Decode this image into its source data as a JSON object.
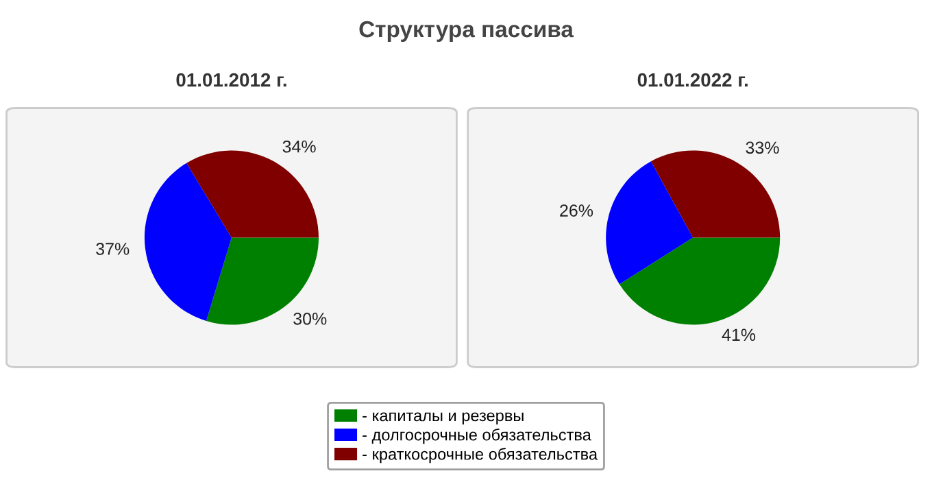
{
  "chart_data": [
    {
      "type": "pie",
      "title": "Структура пассива",
      "subtitle": "01.01.2012 г.",
      "categories": [
        "- капиталы и резервы",
        "- долгосрочные обязательства",
        "- краткосрочные обязательства"
      ],
      "values": [
        30,
        37,
        34
      ],
      "value_labels": [
        "30%",
        "37%",
        "34%"
      ],
      "colors": [
        "#008000",
        "#0000ff",
        "#800000"
      ],
      "legend": "bottom"
    },
    {
      "type": "pie",
      "subtitle": "01.01.2022 г.",
      "categories": [
        null,
        null,
        null
      ],
      "values": [
        41,
        26,
        33
      ],
      "value_labels": [
        "41%",
        "26%",
        "33%"
      ],
      "colors": [
        "#008000",
        "#0000ff",
        "#800000"
      ]
    }
  ]
}
